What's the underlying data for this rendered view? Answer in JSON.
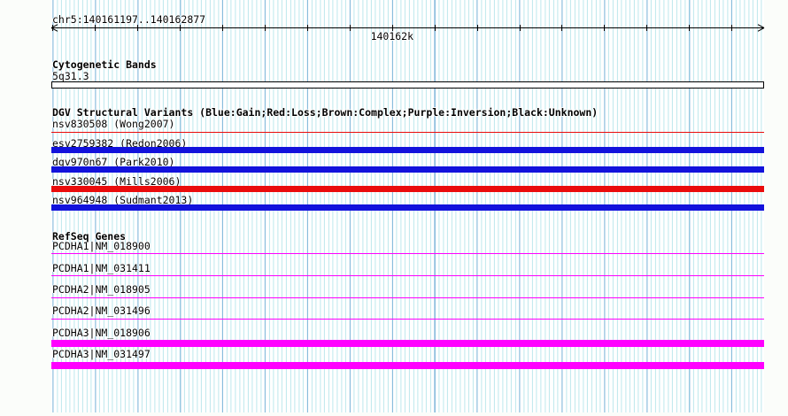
{
  "colors": {
    "stripe_light": "#bde8ec",
    "stripe_dark": "#7fb6da",
    "gain_blue": "#1212dc",
    "loss_red": "#ea0c0c",
    "gene_magenta": "#ff00ff",
    "axis_black": "#000000",
    "band_fill": "#ffffff"
  },
  "region": {
    "label": "chr5:140161197..140162877",
    "chromosome": "chr5",
    "start": 140161197,
    "end": 140162877,
    "tick_interval": 100,
    "axis_tick_label": "140162k",
    "axis_tick_value": 140162000
  },
  "tracks": [
    {
      "title": "Cytogenetic Bands",
      "features": [
        {
          "label": "5q31.3",
          "glyph": "band",
          "color": "#ffffff"
        }
      ]
    },
    {
      "title": "DGV Structural Variants (Blue:Gain;Red:Loss;Brown:Complex;Purple:Inversion;Black:Unknown)",
      "features": [
        {
          "label": "nsv830508 (Wong2007)",
          "type": "loss",
          "color": "#ea0c0c",
          "glyph": "line"
        },
        {
          "label": "esv2759382 (Redon2006)",
          "type": "gain",
          "color": "#1212dc",
          "glyph": "box"
        },
        {
          "label": "dgv970n67 (Park2010)",
          "type": "gain",
          "color": "#1212dc",
          "glyph": "box"
        },
        {
          "label": "nsv330045 (Mills2006)",
          "type": "loss",
          "color": "#ea0c0c",
          "glyph": "box"
        },
        {
          "label": "nsv964948 (Sudmant2013)",
          "type": "gain",
          "color": "#1212dc",
          "glyph": "box"
        }
      ]
    },
    {
      "title": "RefSeq Genes",
      "features": [
        {
          "label": "PCDHA1|NM_018900",
          "color": "#ff00ff",
          "glyph": "line"
        },
        {
          "label": "PCDHA1|NM_031411",
          "color": "#ff00ff",
          "glyph": "line"
        },
        {
          "label": "PCDHA2|NM_018905",
          "color": "#ff00ff",
          "glyph": "line"
        },
        {
          "label": "PCDHA2|NM_031496",
          "color": "#ff00ff",
          "glyph": "line"
        },
        {
          "label": "PCDHA3|NM_018906",
          "color": "#ff00ff",
          "glyph": "boxthick"
        },
        {
          "label": "PCDHA3|NM_031497",
          "color": "#ff00ff",
          "glyph": "boxthick"
        }
      ]
    }
  ]
}
